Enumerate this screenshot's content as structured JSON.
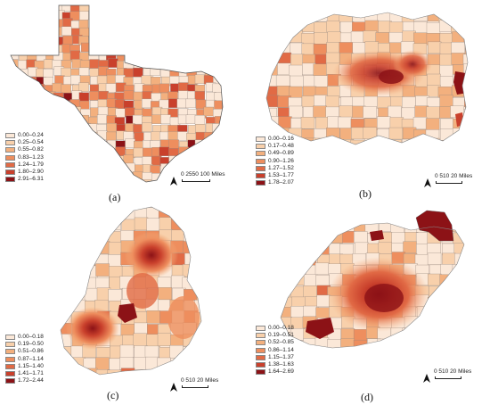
{
  "panels": [
    {
      "id": "a",
      "caption": "(a)",
      "scale_text": "0 2550    100 Miles",
      "legend": [
        {
          "label": "0.00–0.24",
          "color": "#fbe8d8"
        },
        {
          "label": "0.25–0.54",
          "color": "#f8d0ab"
        },
        {
          "label": "0.55–0.82",
          "color": "#f3b07e"
        },
        {
          "label": "0.83–1.23",
          "color": "#ee8e5e"
        },
        {
          "label": "1.24–1.79",
          "color": "#e16a45"
        },
        {
          "label": "1.80–2.90",
          "color": "#c9402c"
        },
        {
          "label": "2.91–6.31",
          "color": "#8c1216"
        }
      ]
    },
    {
      "id": "b",
      "caption": "(b)",
      "scale_text": "0 510    20 Miles",
      "legend": [
        {
          "label": "0.00–0.16",
          "color": "#fbe8d8"
        },
        {
          "label": "0.17–0.48",
          "color": "#f8d0ab"
        },
        {
          "label": "0.49–0.89",
          "color": "#f3b07e"
        },
        {
          "label": "0.90–1.26",
          "color": "#ee8e5e"
        },
        {
          "label": "1.27–1.52",
          "color": "#e16a45"
        },
        {
          "label": "1.53–1.77",
          "color": "#c9402c"
        },
        {
          "label": "1.78–2.07",
          "color": "#8c1216"
        }
      ]
    },
    {
      "id": "c",
      "caption": "(c)",
      "scale_text": "0 510    20 Miles",
      "legend": [
        {
          "label": "0.00–0.18",
          "color": "#fbe8d8"
        },
        {
          "label": "0.19–0.50",
          "color": "#f8d0ab"
        },
        {
          "label": "0.51–0.86",
          "color": "#f3b07e"
        },
        {
          "label": "0.87–1.14",
          "color": "#ee8e5e"
        },
        {
          "label": "1.15–1.40",
          "color": "#e16a45"
        },
        {
          "label": "1.41–1.71",
          "color": "#c9402c"
        },
        {
          "label": "1.72–2.44",
          "color": "#8c1216"
        }
      ]
    },
    {
      "id": "d",
      "caption": "(d)",
      "scale_text": "0 510    20 Miles",
      "legend": [
        {
          "label": "0.00–0.18",
          "color": "#fbe8d8"
        },
        {
          "label": "0.19–0.51",
          "color": "#f8d0ab"
        },
        {
          "label": "0.52–0.85",
          "color": "#f3b07e"
        },
        {
          "label": "0.86–1.14",
          "color": "#ee8e5e"
        },
        {
          "label": "1.15–1.37",
          "color": "#e16a45"
        },
        {
          "label": "1.38–1.63",
          "color": "#c9402c"
        },
        {
          "label": "1.64–2.69",
          "color": "#8c1216"
        }
      ]
    }
  ],
  "north_label": "N"
}
